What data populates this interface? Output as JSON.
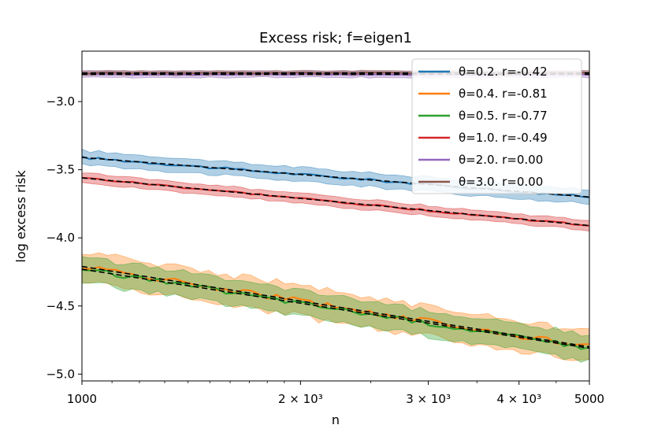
{
  "chart_data": {
    "type": "line",
    "title": "Excess risk;  f=eigen1",
    "xlabel": "n",
    "ylabel": "log excess risk",
    "xscale": "log",
    "xlim": [
      1000,
      5000
    ],
    "ylim": [
      -5.05,
      -2.63
    ],
    "x_ticks": [
      {
        "value": 1000,
        "label": "1000"
      },
      {
        "value": 2000,
        "label": "2 × 10³"
      },
      {
        "value": 3000,
        "label": "3 × 10³"
      },
      {
        "value": 4000,
        "label": "4 × 10³"
      },
      {
        "value": 5000,
        "label": "5000"
      }
    ],
    "y_ticks": [
      {
        "value": -3.0,
        "label": "−3.0"
      },
      {
        "value": -3.5,
        "label": "−3.5"
      },
      {
        "value": -4.0,
        "label": "−4.0"
      },
      {
        "value": -4.5,
        "label": "−4.5"
      },
      {
        "value": -5.0,
        "label": "−5.0"
      }
    ],
    "grid": false,
    "legend_position": "top-right",
    "series": [
      {
        "name": "θ=0.2. r=-0.42",
        "color": "#1f77b4",
        "start": -3.41,
        "end": -3.7,
        "band": 0.055
      },
      {
        "name": "θ=0.4. r=-0.81",
        "color": "#ff7f0e",
        "start": -4.21,
        "end": -4.8,
        "band": 0.12
      },
      {
        "name": "θ=0.5. r=-0.77",
        "color": "#2ca02c",
        "start": -4.23,
        "end": -4.81,
        "band": 0.1
      },
      {
        "name": "θ=1.0. r=-0.49",
        "color": "#d62728",
        "start": -3.56,
        "end": -3.91,
        "band": 0.04
      },
      {
        "name": "θ=2.0. r=0.00",
        "color": "#9467bd",
        "start": -2.8,
        "end": -2.8,
        "band": 0.025
      },
      {
        "name": "θ=3.0. r=0.00",
        "color": "#8c564b",
        "start": -2.79,
        "end": -2.79,
        "band": 0.018
      }
    ]
  }
}
